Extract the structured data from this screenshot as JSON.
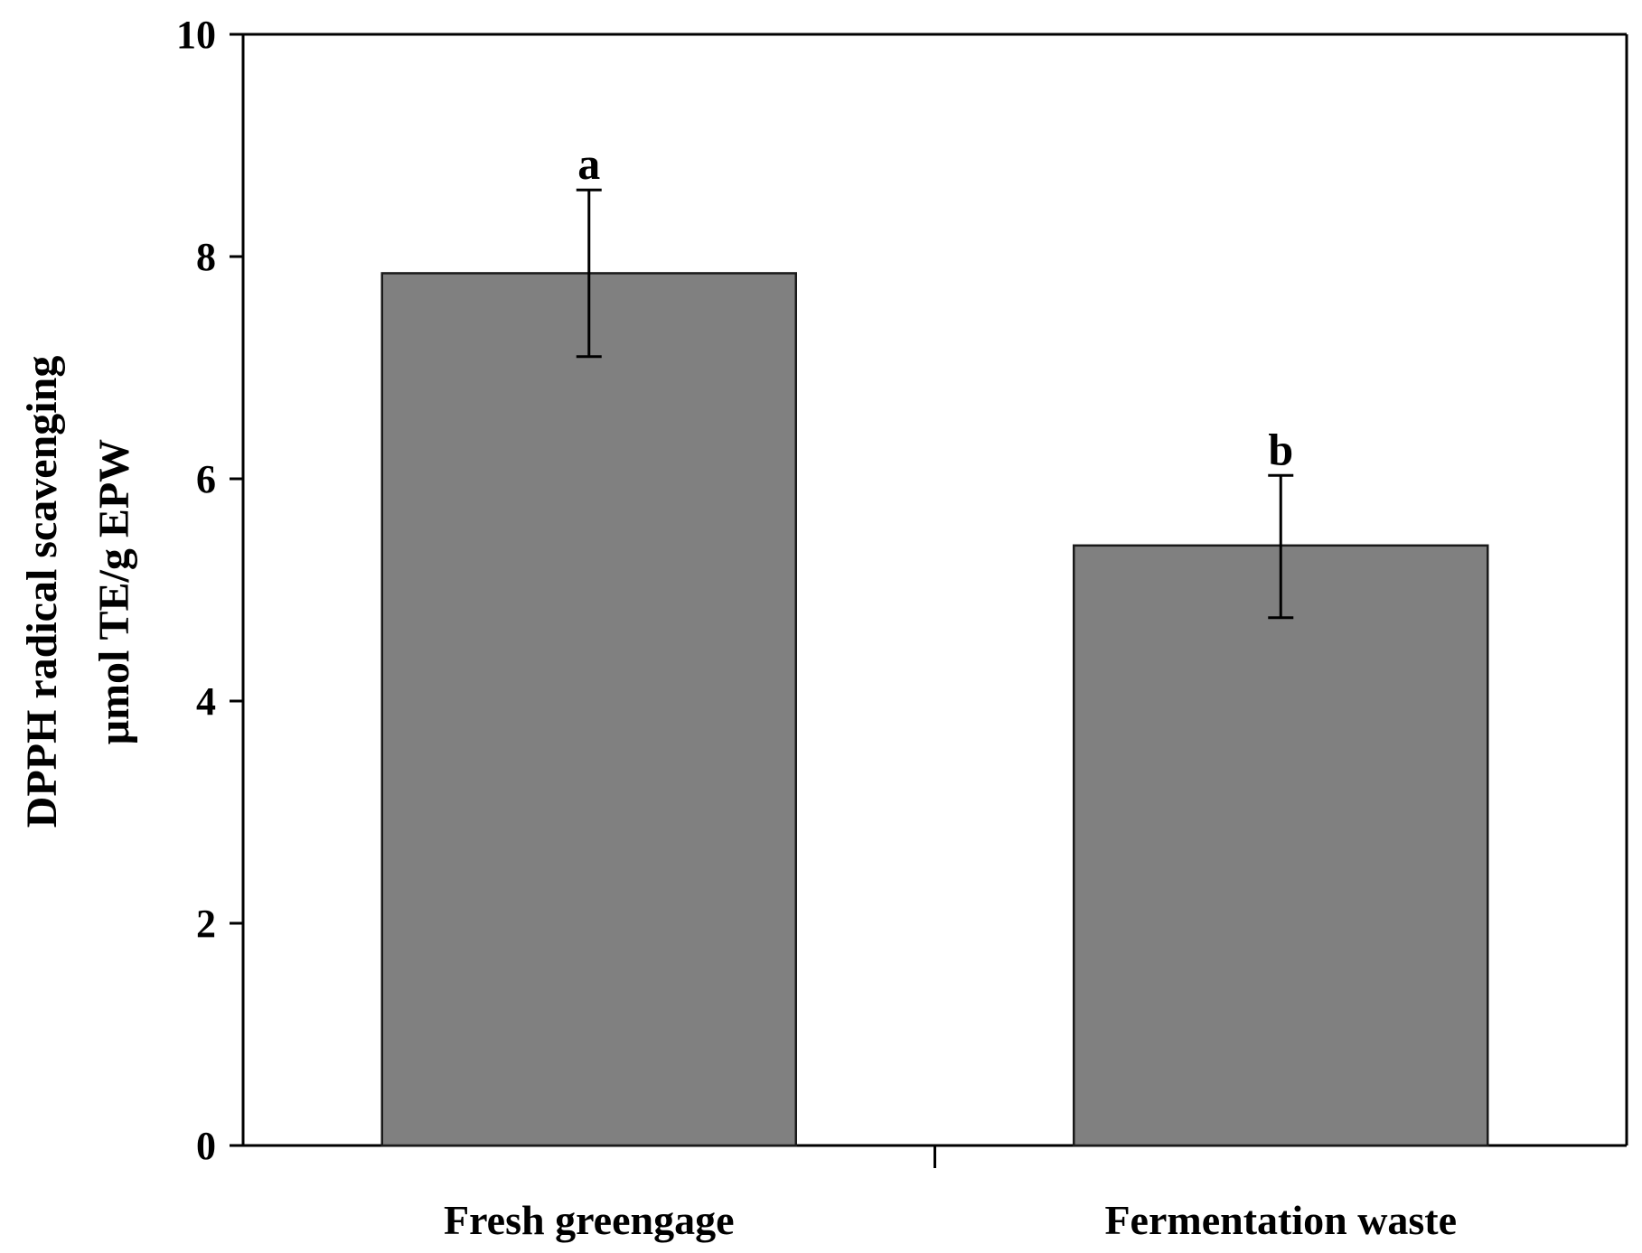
{
  "chart_data": {
    "type": "bar",
    "categories": [
      "Fresh greengage",
      "Fermentation waste"
    ],
    "values": [
      7.85,
      5.4
    ],
    "error_upper": [
      8.6,
      6.03
    ],
    "error_lower": [
      7.1,
      4.75
    ],
    "significance_labels": [
      "a",
      "b"
    ],
    "ylabel_lines": [
      "DPPH radical scavenging",
      "μmol TE/g EPW"
    ],
    "xlabel": "",
    "ylim": [
      0,
      10
    ],
    "yticks": [
      0,
      2,
      4,
      6,
      8,
      10
    ],
    "ytick_labels": [
      "0",
      "2",
      "4",
      "6",
      "8",
      "10"
    ],
    "grid": false,
    "legend": "none",
    "colors": {
      "bar_fill": "#808080",
      "bar_stroke": "#1a1a1a",
      "axis": "#000000"
    }
  }
}
